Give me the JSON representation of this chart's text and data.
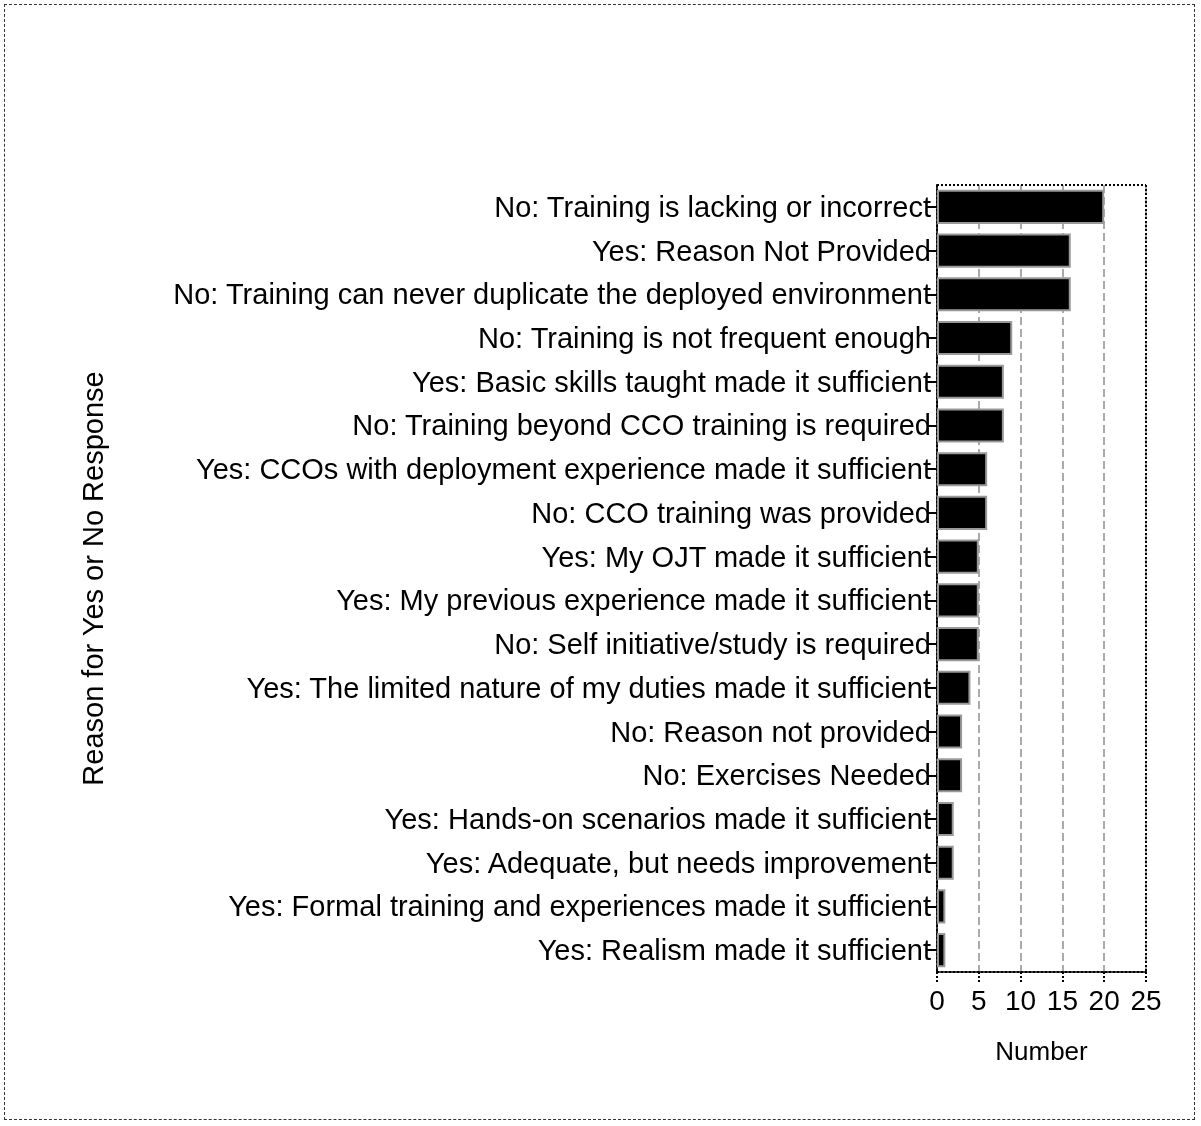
{
  "chart_data": {
    "type": "bar",
    "orientation": "horizontal",
    "xlabel": "Number",
    "ylabel": "Reason for Yes or No Response",
    "categories": [
      "No: Training is lacking or incorrect",
      "Yes: Reason Not Provided",
      "No: Training can never duplicate the deployed environment",
      "No: Training is not frequent enough",
      "Yes: Basic skills taught made it sufficient",
      "No: Training beyond CCO training is required",
      "Yes: CCOs with deployment experience made it sufficient",
      "No: CCO training was provided",
      "Yes: My OJT made it sufficient",
      "Yes: My previous experience made it sufficient",
      "No: Self initiative/study is required",
      "Yes: The limited nature of my duties made it sufficient",
      "No: Reason not provided",
      "No: Exercises Needed",
      "Yes: Hands-on scenarios made it sufficient",
      "Yes: Adequate, but needs improvement",
      "Yes: Formal training and experiences made it sufficient",
      "Yes: Realism made it sufficient"
    ],
    "values": [
      20,
      16,
      16,
      9,
      8,
      8,
      6,
      6,
      5,
      5,
      5,
      4,
      3,
      3,
      2,
      2,
      1,
      1
    ],
    "color": "#000000",
    "xlim": [
      0,
      25
    ],
    "xticks": [
      0,
      5,
      10,
      15,
      20,
      25
    ],
    "grid": "x"
  }
}
